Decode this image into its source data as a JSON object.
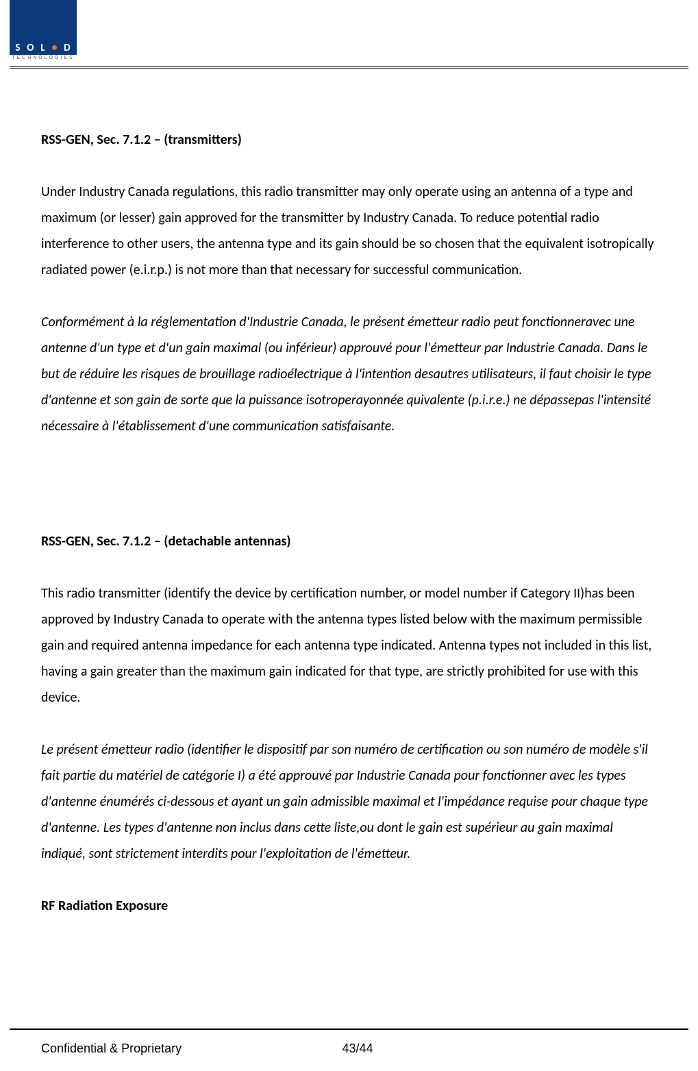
{
  "logo": {
    "brand_letters": [
      "S",
      "O",
      "L",
      "i",
      "D"
    ],
    "brand_sub": "TECHNOLOGIES",
    "brand_color": "#0b3a7a",
    "dot_color": "#f07030"
  },
  "sections": {
    "s1_heading": "RSS-GEN, Sec. 7.1.2 – (transmitters)",
    "s1_para_en": "Under Industry Canada regulations, this radio transmitter may only operate using an antenna of a type and maximum (or lesser) gain approved for the transmitter by Industry Canada. To reduce potential radio interference to other users, the antenna type and its gain should be so chosen that the equivalent isotropically radiated power (e.i.r.p.) is not more than that necessary for successful communication.",
    "s1_para_fr": "Conformément à la réglementation d'Industrie Canada, le présent émetteur radio peut fonctionneravec une antenne d'un type et d'un gain maximal (ou inférieur) approuvé pour l'émetteur par Industrie Canada. Dans le but de réduire les risques de brouillage radioélectrique à l'intention desautres utilisateurs, il faut choisir le type d'antenne et son gain de sorte que la puissance isotroperayonnée quivalente (p.i.r.e.) ne dépassepas l'intensité nécessaire à l'établissement d'une communication satisfaisante.",
    "s2_heading": "RSS-GEN, Sec. 7.1.2 – (detachable antennas)",
    "s2_para_en": "This radio transmitter (identify the device by certification number, or model number if Category II)has been approved by Industry Canada to operate with the antenna types listed below with the maximum permissible gain and required antenna impedance for each antenna type indicated. Antenna types not included in this list, having a gain greater than the maximum gain indicated for that type, are strictly prohibited for use with this device.",
    "s2_para_fr": "Le présent émetteur radio (identifier le dispositif par son numéro de certification ou son numéro de modèle s'il fait partie du matériel de catégorie I) a été approuvé par Industrie Canada pour fonctionner avec les types d'antenne énumérés ci-dessous et ayant un gain admissible maximal et l'impédance requise pour chaque type d'antenne. Les types d'antenne non inclus dans cette liste,ou dont le gain est supérieur au gain maximal indiqué, sont strictement interdits pour l'exploitation de l'émetteur.",
    "s3_heading": "RF Radiation Exposure"
  },
  "footer": {
    "left": "Confidential & Proprietary",
    "page": "43/44"
  },
  "style": {
    "body_font_size": 20,
    "line_height": 1.9,
    "text_color": "#000000",
    "background_color": "#ffffff"
  }
}
